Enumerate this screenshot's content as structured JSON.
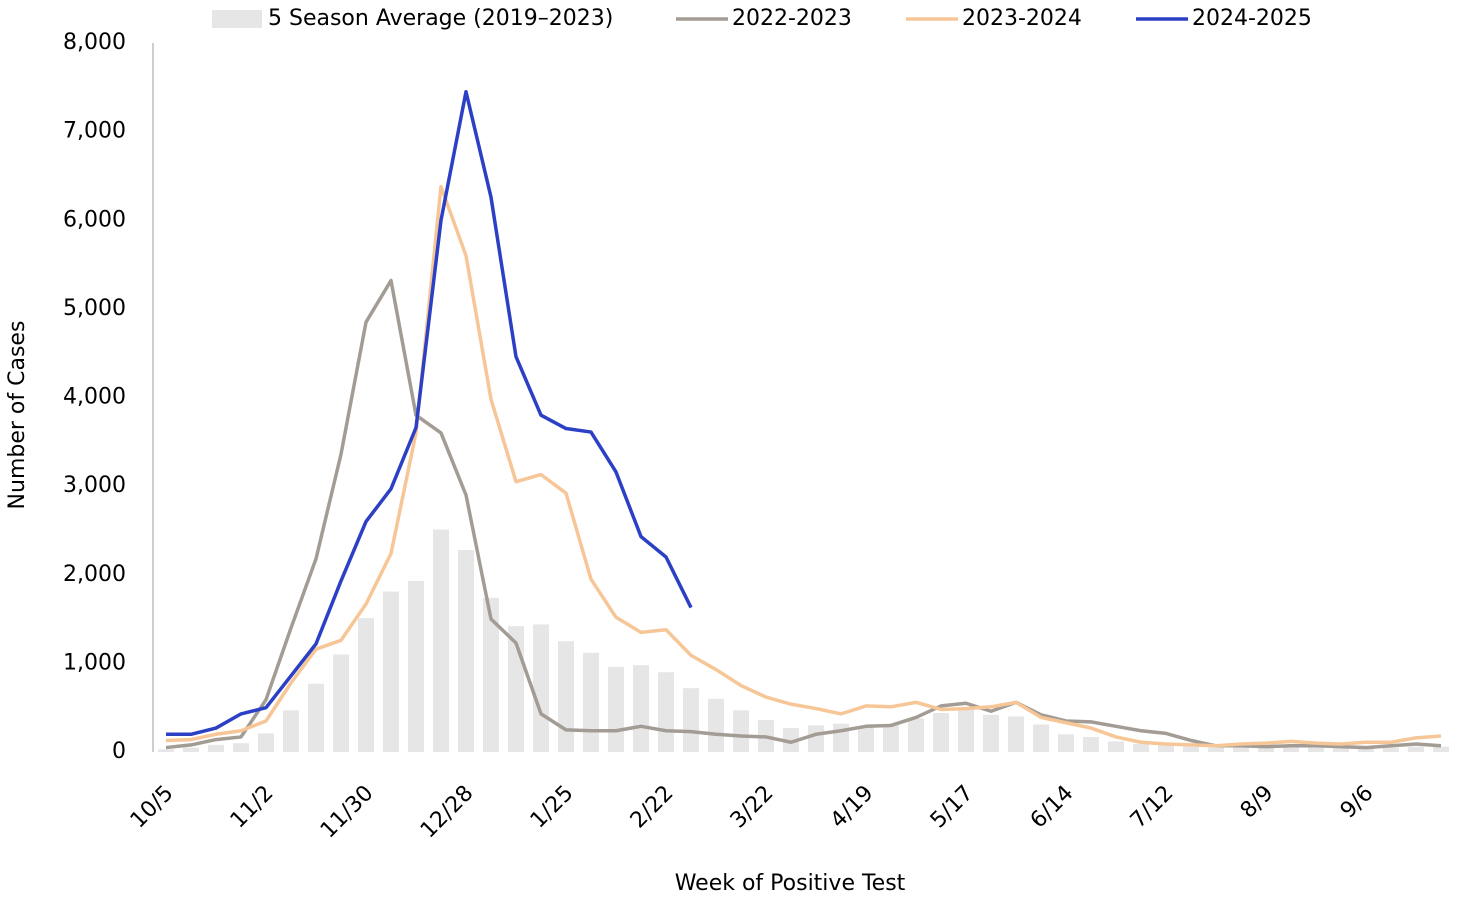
{
  "chart_data": {
    "type": "line",
    "x_label": "Week of Positive Test",
    "y_label": "Number of Cases",
    "categories": [
      "10/5",
      null,
      null,
      null,
      "11/2",
      null,
      null,
      null,
      "11/30",
      null,
      null,
      null,
      "12/28",
      null,
      null,
      null,
      "1/25",
      null,
      null,
      null,
      "2/22",
      null,
      null,
      null,
      "3/22",
      null,
      null,
      null,
      "4/19",
      null,
      null,
      null,
      "5/17",
      null,
      null,
      null,
      "6/14",
      null,
      null,
      null,
      "7/12",
      null,
      null,
      null,
      "8/9",
      null,
      null,
      null,
      "9/6",
      null,
      null,
      null
    ],
    "ylim": [
      0,
      8000
    ],
    "yticks": [
      0,
      {
        "value": 1000,
        "label": "1,000"
      },
      {
        "value": 2000,
        "label": "2,000"
      },
      {
        "value": 3000,
        "label": "3,000"
      },
      {
        "value": 4000,
        "label": "4,000"
      },
      {
        "value": 5000,
        "label": "5,000"
      },
      {
        "value": 6000,
        "label": "6,000"
      },
      {
        "value": 7000,
        "label": "7,000"
      },
      {
        "value": 8000,
        "label": "8,000"
      }
    ],
    "legend": "top",
    "series": [
      {
        "name": "5 Season Average (2019–2023)",
        "type": "bar",
        "color": "#e6e6e6",
        "values": [
          30,
          50,
          80,
          100,
          210,
          470,
          770,
          1100,
          1510,
          1810,
          1930,
          2510,
          2280,
          1740,
          1420,
          1440,
          1250,
          1120,
          960,
          980,
          900,
          720,
          600,
          470,
          360,
          270,
          300,
          320,
          290,
          300,
          380,
          440,
          500,
          420,
          400,
          310,
          200,
          170,
          120,
          90,
          80,
          60,
          50,
          50,
          50,
          50,
          50,
          50,
          50,
          50,
          60,
          60
        ]
      },
      {
        "name": "2022-2023",
        "type": "line",
        "color": "#a29c94",
        "values": [
          50,
          80,
          140,
          170,
          590,
          1400,
          2180,
          3360,
          4850,
          5320,
          3800,
          3600,
          2900,
          1500,
          1230,
          430,
          250,
          240,
          240,
          290,
          240,
          230,
          200,
          180,
          170,
          110,
          200,
          240,
          290,
          300,
          390,
          520,
          550,
          460,
          560,
          420,
          350,
          340,
          290,
          240,
          210,
          130,
          70,
          70,
          60,
          70,
          70,
          60,
          50,
          70,
          90,
          70
        ]
      },
      {
        "name": "2023-2024",
        "type": "line",
        "color": "#f7c697",
        "values": [
          130,
          140,
          200,
          240,
          350,
          780,
          1160,
          1260,
          1670,
          2240,
          3600,
          6380,
          5600,
          3980,
          3050,
          3130,
          2920,
          1950,
          1520,
          1350,
          1380,
          1090,
          930,
          750,
          620,
          540,
          490,
          430,
          520,
          510,
          560,
          480,
          490,
          510,
          560,
          390,
          330,
          270,
          170,
          110,
          90,
          80,
          70,
          90,
          100,
          120,
          100,
          90,
          110,
          110,
          160,
          180
        ]
      },
      {
        "name": "2024-2025",
        "type": "line",
        "color": "#2b40c4",
        "values": [
          200,
          200,
          270,
          430,
          500,
          860,
          1220,
          1930,
          2600,
          2970,
          3660,
          6000,
          7450,
          6260,
          4460,
          3800,
          3650,
          3610,
          3160,
          2430,
          2200,
          1630,
          null,
          null,
          null,
          null,
          null,
          null,
          null,
          null,
          null,
          null,
          null,
          null,
          null,
          null,
          null,
          null,
          null,
          null,
          null,
          null,
          null,
          null,
          null,
          null,
          null,
          null,
          null,
          null,
          null,
          null
        ]
      }
    ]
  }
}
